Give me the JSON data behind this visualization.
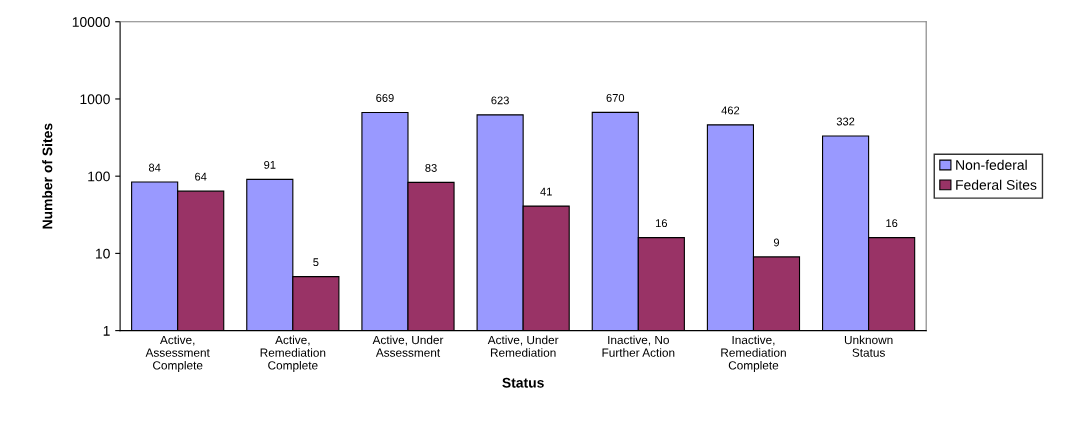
{
  "chart_data": {
    "type": "bar",
    "xlabel": "Status",
    "ylabel": "Number of Sites",
    "categories": [
      "Active,\nAssessment\nComplete",
      "Active,\nRemediation\nComplete",
      "Active, Under\nAssessment",
      "Active, Under\nRemediation",
      "Inactive, No\nFurther Action",
      "Inactive,\nRemediation\nComplete",
      "Unknown\nStatus"
    ],
    "series": [
      {
        "name": "Non-federal",
        "color": "#9999ff",
        "values": [
          84,
          91,
          669,
          623,
          670,
          462,
          332
        ]
      },
      {
        "name": "Federal Sites",
        "color": "#993366",
        "values": [
          64,
          5,
          83,
          41,
          16,
          9,
          16
        ]
      }
    ],
    "log": "y",
    "ylim": [
      1,
      10000
    ],
    "yticks": [
      1,
      10,
      100,
      1000,
      10000
    ],
    "data_labels": true,
    "legend": "right",
    "grid": false
  }
}
